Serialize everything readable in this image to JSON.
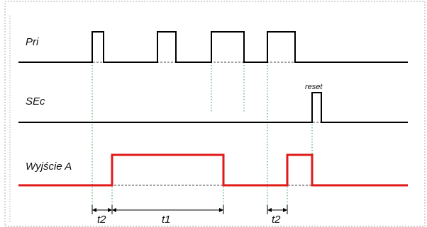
{
  "diagram": {
    "signals": {
      "pri_label": "Pri",
      "sec_label": "SEc",
      "out_label": "Wyjście A"
    },
    "annotation": {
      "reset_label": "reset"
    },
    "intervals": {
      "t2_first": "t2",
      "t1": "t1",
      "t2_second": "t2"
    },
    "colors": {
      "input_signal": "#000000",
      "output_signal": "#e11919",
      "guide_lines": "#2a9d4a",
      "frame": "#a8a8a8"
    }
  }
}
